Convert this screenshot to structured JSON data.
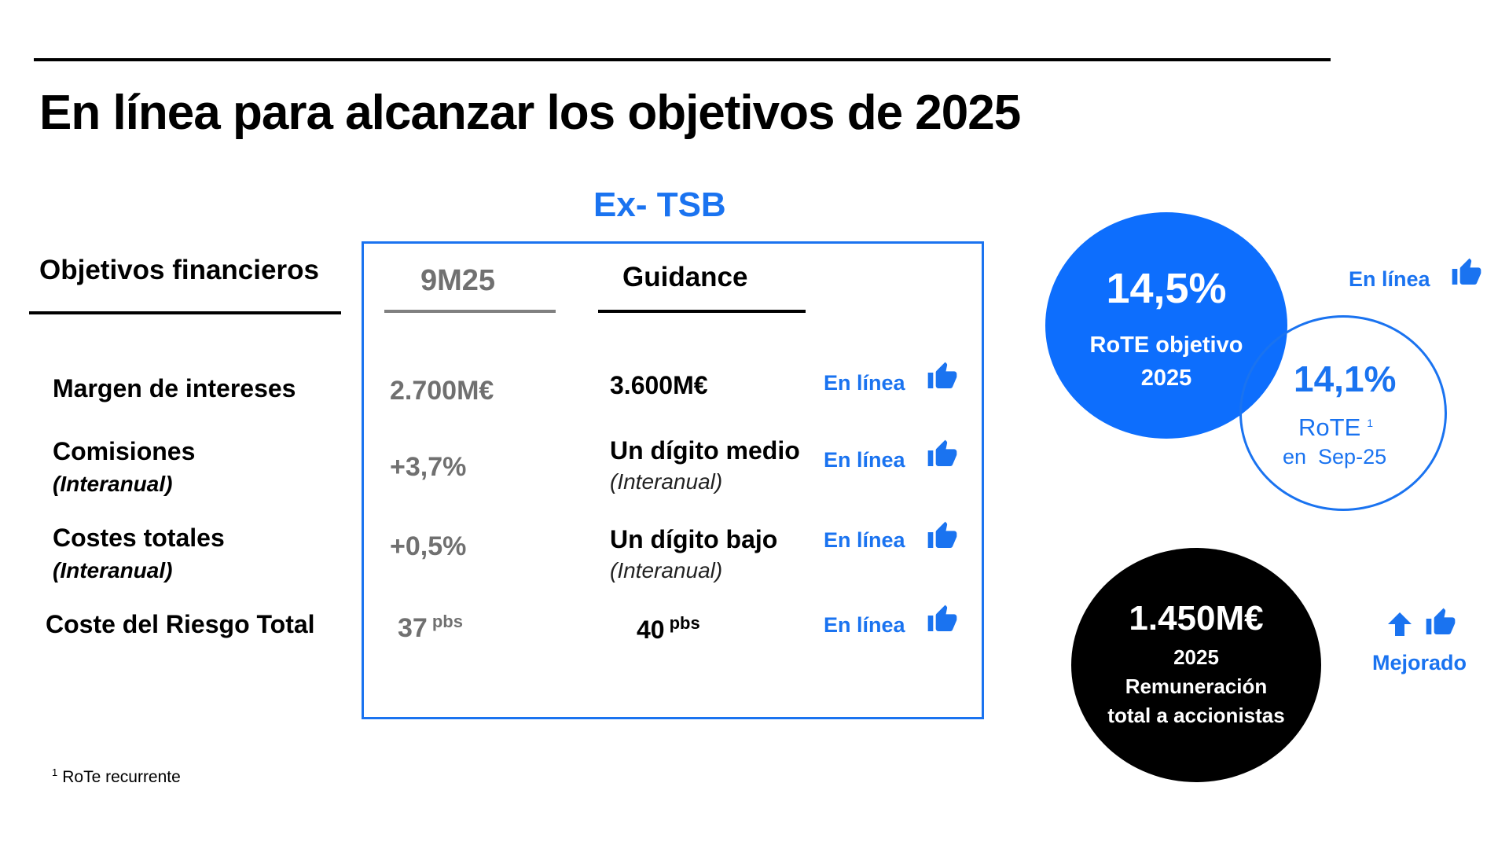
{
  "title": "En línea para alcanzar los objetivos de 2025",
  "section_label": "Ex- TSB",
  "table": {
    "header_objectives": "Objetivos financieros",
    "header_9m25": "9M25",
    "header_guidance": "Guidance",
    "rows": [
      {
        "label": "Margen de intereses",
        "sublabel": "",
        "value_9m25": "2.700M€",
        "value_9m25_unit": "",
        "guidance": "3.600M€",
        "guidance_unit": "",
        "guidance_sub": "",
        "status": "En línea"
      },
      {
        "label": "Comisiones",
        "sublabel": "(Interanual)",
        "value_9m25": "+3,7%",
        "value_9m25_unit": "",
        "guidance": "Un dígito medio",
        "guidance_unit": "",
        "guidance_sub": "(Interanual)",
        "status": "En línea"
      },
      {
        "label": "Costes totales",
        "sublabel": "(Interanual)",
        "value_9m25": "+0,5%",
        "value_9m25_unit": "",
        "guidance": "Un dígito bajo",
        "guidance_unit": "",
        "guidance_sub": "(Interanual)",
        "status": "En línea"
      },
      {
        "label": "Coste del Riesgo Total",
        "sublabel": "",
        "value_9m25": "37",
        "value_9m25_unit": "pbs",
        "guidance": "40",
        "guidance_unit": "pbs",
        "guidance_sub": "",
        "status": "En línea"
      }
    ]
  },
  "rote_target": {
    "value": "14,5%",
    "label_line1": "RoTE objetivo",
    "label_line2": "2025",
    "status": "En línea"
  },
  "rote_current": {
    "value": "14,1%",
    "label": "RoTE",
    "footnote_mark": "1",
    "period": "en  Sep-25"
  },
  "shareholder": {
    "value": "1.450M€",
    "line1": "2025",
    "line2": "Remuneración",
    "line3": "total a accionistas",
    "status": "Mejorado"
  },
  "footnote": {
    "mark": "1",
    "text": "RoTe recurrente"
  },
  "colors": {
    "accent": "#1a73f0",
    "circle_blue": "#0d6efd",
    "grey_text": "#707070",
    "black": "#000000"
  },
  "icons": {
    "thumb": "thumbs-up-icon",
    "arrow": "arrow-up-icon"
  }
}
